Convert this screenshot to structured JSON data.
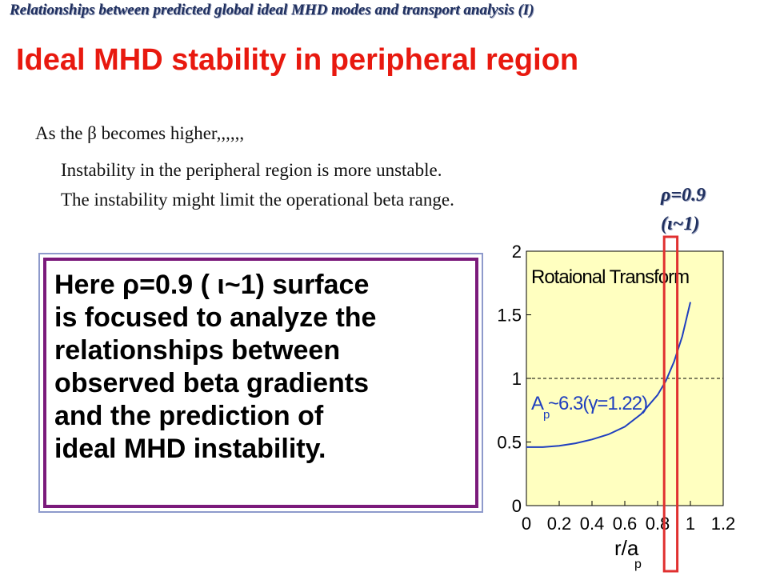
{
  "header": {
    "text": "Relationships between predicted global ideal MHD modes and transport analysis (I)"
  },
  "title": "Ideal MHD stability in peripheral region",
  "intro": "As the β becomes higher,,,,,,",
  "bullets": [
    "Instability in the peripheral region is more unstable.",
    "The instability might  limit the operational beta range."
  ],
  "rho_label": {
    "line1": "ρ=0.9",
    "line2": "(ι~1)"
  },
  "box_lines": [
    "Here ρ=0.9 ( ι~1) surface",
    "is focused to analyze the",
    "relationships between",
    "observed beta gradients",
    "and the prediction of",
    "ideal MHD instability."
  ],
  "colors": {
    "title": "#e8190f",
    "plot_bg": "#ffffc0",
    "curve": "#1f3fbf",
    "highlight": "#e03030",
    "box_border": "#7b1a7b"
  },
  "chart_data": {
    "type": "line",
    "title": "Rotaional Transform",
    "xlabel": "r/a",
    "xlabel_subscript": "p",
    "ylabel": "",
    "xlim": [
      0,
      1.2
    ],
    "ylim": [
      0,
      2
    ],
    "x_ticks": [
      "0",
      "0.2",
      "0.4",
      "0.6",
      "0.8",
      "1",
      "1.2"
    ],
    "y_ticks": [
      "0",
      "0.5",
      "1",
      "1.5",
      "2"
    ],
    "annotation": {
      "main": "A",
      "sub": "p",
      "rest": "~6.3(γ=1.22)"
    },
    "reference_line_y": 1,
    "highlight_x": [
      0.84,
      0.92
    ],
    "series": [
      {
        "x": [
          0,
          0.1,
          0.2,
          0.3,
          0.4,
          0.5,
          0.6,
          0.7,
          0.8,
          0.85,
          0.9,
          0.95,
          1.0
        ],
        "y": [
          0.46,
          0.46,
          0.47,
          0.49,
          0.52,
          0.56,
          0.62,
          0.72,
          0.87,
          0.98,
          1.13,
          1.33,
          1.6
        ]
      }
    ]
  }
}
